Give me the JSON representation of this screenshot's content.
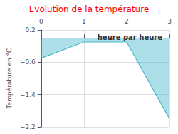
{
  "chart_data": {
    "type": "line",
    "title": "Evolution de la température",
    "title_color": "#ff0000",
    "xlabel": "heure par heure",
    "ylabel": "Température en °C",
    "x": [
      0,
      1,
      2,
      3
    ],
    "values": [
      -0.5,
      -0.1,
      -0.1,
      -2.0
    ],
    "color": "#4ab8cc",
    "xlim": [
      0,
      3
    ],
    "ylim": [
      -2.2,
      0.2
    ],
    "xticks": [
      0,
      1,
      2,
      3
    ],
    "yticks": [
      0.2,
      {
        "value": -0.6,
        "label": "−0.6"
      },
      {
        "value": -1.4,
        "label": "−1.4"
      },
      {
        "value": -2.2,
        "label": "−2.2"
      }
    ],
    "grid": true
  }
}
